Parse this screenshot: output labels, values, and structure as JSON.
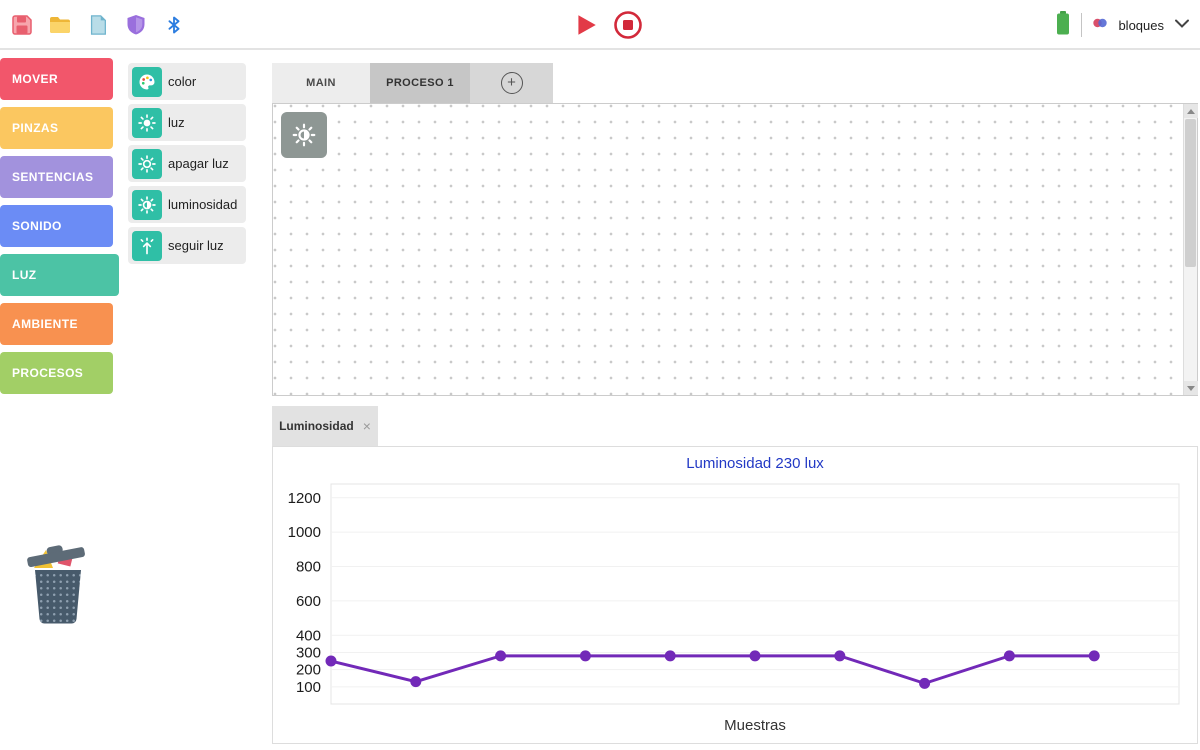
{
  "toolbar": {
    "device_label": "bloques",
    "icon_names": [
      "save-icon",
      "folder-icon",
      "file-icon",
      "shield-icon",
      "bluetooth-icon"
    ],
    "run_controls": [
      "play",
      "stop"
    ],
    "accent_red": "#e23a47"
  },
  "categories": [
    {
      "label": "MOVER",
      "color": "#f2566b"
    },
    {
      "label": "PINZAS",
      "color": "#fbc760"
    },
    {
      "label": "SENTENCIAS",
      "color": "#a292dd"
    },
    {
      "label": "SONIDO",
      "color": "#6b8cf5"
    },
    {
      "label": "LUZ",
      "color": "#4cc3a5",
      "selected": true
    },
    {
      "label": "AMBIENTE",
      "color": "#f89150"
    },
    {
      "label": "PROCESOS",
      "color": "#a2cf66"
    }
  ],
  "blocks": [
    {
      "label": "color",
      "icon": "palette-icon"
    },
    {
      "label": "luz",
      "icon": "sun-icon"
    },
    {
      "label": "apagar luz",
      "icon": "sun-off-icon"
    },
    {
      "label": "luminosidad",
      "icon": "brightness-icon"
    },
    {
      "label": "seguir luz",
      "icon": "follow-light-icon"
    }
  ],
  "ui": {
    "block_icon_color": "#2fbfa6",
    "canvas_block_color": "#8e9794"
  },
  "workspace": {
    "tabs": [
      {
        "label": "MAIN"
      },
      {
        "label": "PROCESO 1",
        "selected": true
      }
    ],
    "add_tab_label": "+"
  },
  "panel": {
    "tab_label": "Luminosidad",
    "close_label": "×"
  },
  "chart_data": {
    "type": "line",
    "title": "Luminosidad 230 lux",
    "title_color": "#2239c5",
    "xlabel": "Muestras",
    "x": [
      1,
      2,
      3,
      4,
      5,
      6,
      7,
      8,
      9,
      10
    ],
    "values": [
      250,
      130,
      280,
      280,
      280,
      280,
      280,
      120,
      280,
      280
    ],
    "yticks": [
      100,
      200,
      300,
      400,
      600,
      800,
      1000,
      1200
    ],
    "ylim": [
      0,
      1280
    ],
    "line_color": "#7229b8",
    "grid": true,
    "legend": false
  }
}
